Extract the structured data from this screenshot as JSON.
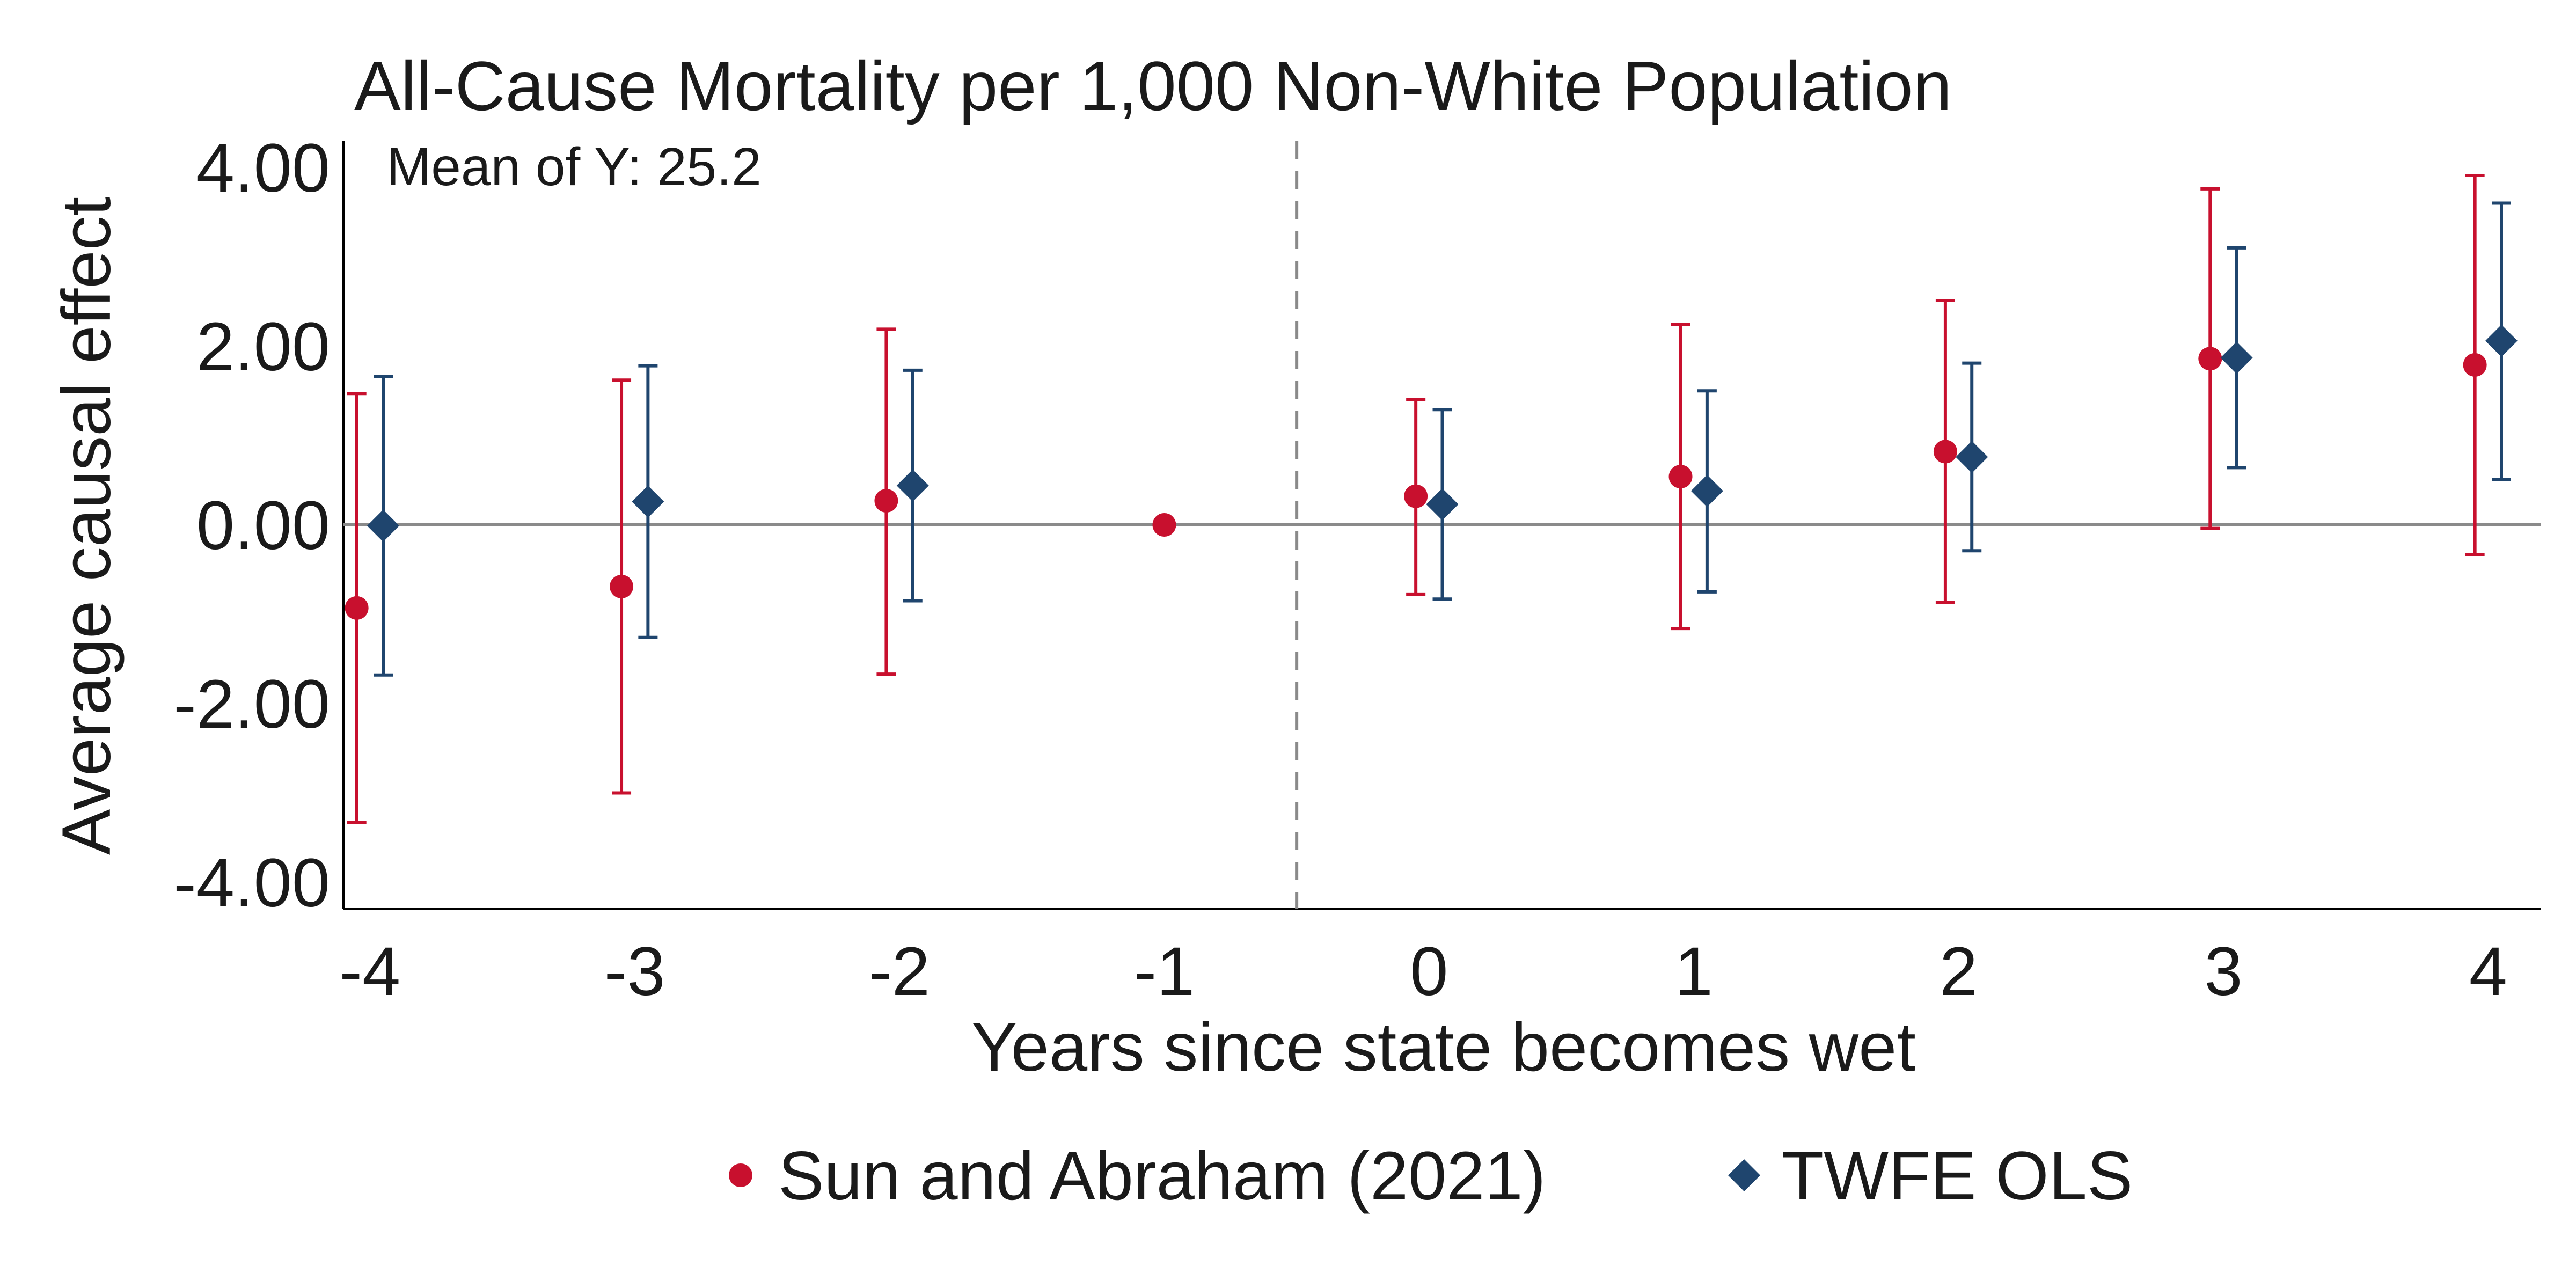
{
  "chart_data": {
    "type": "scatter",
    "title": "All-Cause Mortality per 1,000 Non-White Population",
    "annotation": "Mean of Y: 25.2",
    "xlabel": "Years since state becomes wet",
    "ylabel": "Average causal effect",
    "x": [
      -4,
      -3,
      -2,
      -1,
      0,
      1,
      2,
      3,
      4
    ],
    "x_tick_labels": [
      "-4",
      "-3",
      "-2",
      "-1",
      "0",
      "1",
      "2",
      "3",
      "4"
    ],
    "y_ticks": [
      4,
      2,
      0,
      -2,
      -4
    ],
    "y_tick_labels": [
      "4.00",
      "2.00",
      "0.00",
      "-2.00",
      "-4.00"
    ],
    "ylim": [
      -4.3,
      4.3
    ],
    "xlim": [
      -4.1,
      4.2
    ],
    "reference_line_x": -0.5,
    "reference_line_y": 0,
    "grid": false,
    "legend_position": "bottom",
    "series": [
      {
        "name": "Sun and Abraham (2021)",
        "marker": "circle",
        "color": "#c8102e",
        "points": [
          {
            "x": -4,
            "y": -0.93,
            "lo": -3.33,
            "hi": 1.47
          },
          {
            "x": -3,
            "y": -0.69,
            "lo": -3.0,
            "hi": 1.62
          },
          {
            "x": -2,
            "y": 0.27,
            "lo": -1.67,
            "hi": 2.19
          },
          {
            "x": -1,
            "y": 0.0,
            "lo": null,
            "hi": null
          },
          {
            "x": 0,
            "y": 0.32,
            "lo": -0.78,
            "hi": 1.4
          },
          {
            "x": 1,
            "y": 0.54,
            "lo": -1.16,
            "hi": 2.24
          },
          {
            "x": 2,
            "y": 0.82,
            "lo": -0.87,
            "hi": 2.51
          },
          {
            "x": 3,
            "y": 1.86,
            "lo": -0.04,
            "hi": 3.76
          },
          {
            "x": 4,
            "y": 1.79,
            "lo": -0.33,
            "hi": 3.91
          }
        ]
      },
      {
        "name": "TWFE OLS",
        "marker": "diamond",
        "color": "#1f456e",
        "points": [
          {
            "x": -4,
            "y": -0.01,
            "lo": -1.68,
            "hi": 1.66
          },
          {
            "x": -3,
            "y": 0.26,
            "lo": -1.26,
            "hi": 1.78
          },
          {
            "x": -2,
            "y": 0.44,
            "lo": -0.85,
            "hi": 1.73
          },
          {
            "x": 0,
            "y": 0.23,
            "lo": -0.83,
            "hi": 1.29
          },
          {
            "x": 1,
            "y": 0.38,
            "lo": -0.75,
            "hi": 1.5
          },
          {
            "x": 2,
            "y": 0.76,
            "lo": -0.29,
            "hi": 1.81
          },
          {
            "x": 3,
            "y": 1.87,
            "lo": 0.64,
            "hi": 3.1
          },
          {
            "x": 4,
            "y": 2.06,
            "lo": 0.51,
            "hi": 3.6
          }
        ]
      }
    ]
  }
}
